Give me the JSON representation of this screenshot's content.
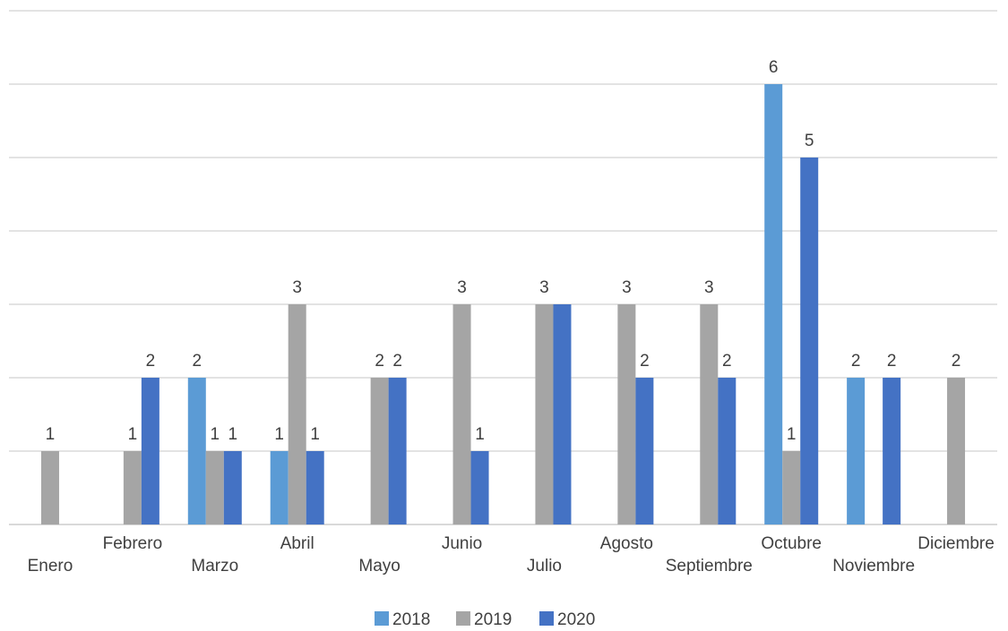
{
  "chart_data": {
    "type": "bar",
    "categories": [
      "Enero",
      "Febrero",
      "Marzo",
      "Abril",
      "Mayo",
      "Junio",
      "Julio",
      "Agosto",
      "Septiembre",
      "Octubre",
      "Noviembre",
      "Diciembre"
    ],
    "series": [
      {
        "name": "2018",
        "color": "#5b9bd5",
        "values": [
          0,
          0,
          2,
          1,
          0,
          0,
          0,
          0,
          0,
          6,
          2,
          0
        ]
      },
      {
        "name": "2019",
        "color": "#a5a5a5",
        "values": [
          1,
          1,
          1,
          3,
          2,
          3,
          3,
          3,
          3,
          1,
          0,
          2
        ]
      },
      {
        "name": "2020",
        "color": "#4472c4",
        "values": [
          0,
          2,
          1,
          1,
          2,
          1,
          3,
          2,
          2,
          5,
          2,
          0
        ]
      }
    ],
    "data_labels": [
      [
        "",
        "",
        "2",
        "1",
        "",
        "",
        "",
        "",
        "",
        "6",
        "2",
        ""
      ],
      [
        "1",
        "1",
        "1",
        "3",
        "2",
        "3",
        "3",
        "3",
        "3",
        "1",
        "",
        "2"
      ],
      [
        "",
        "2",
        "1",
        "1",
        "2",
        "1",
        "",
        "2",
        "2",
        "5",
        "2",
        ""
      ]
    ],
    "ylim": [
      0,
      7
    ],
    "grid": true,
    "legend_position": "bottom",
    "title": "",
    "xlabel": "",
    "ylabel": ""
  }
}
